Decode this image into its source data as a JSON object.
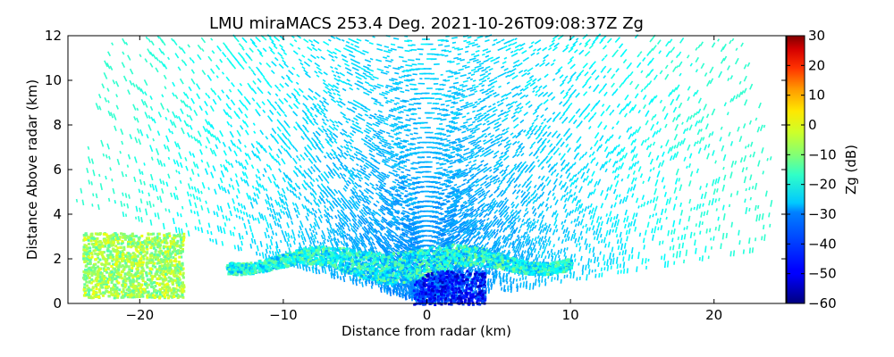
{
  "chart_data": {
    "type": "heatmap",
    "title": "LMU miraMACS 253.4 Deg. 2021-10-26T09:08:37Z  Zg",
    "xlabel": "Distance from radar (km)",
    "ylabel": "Distance Above radar  (km)",
    "xlim": [
      -25,
      25
    ],
    "ylim": [
      0,
      12
    ],
    "xticks": [
      "−20",
      "−10",
      "0",
      "10",
      "20"
    ],
    "xtick_values": [
      -20,
      -10,
      0,
      10,
      20
    ],
    "yticks": [
      "0",
      "2",
      "4",
      "6",
      "8",
      "10",
      "12"
    ],
    "ytick_values": [
      0,
      2,
      4,
      6,
      8,
      10,
      12
    ],
    "colorbar": {
      "label": "Zg (dB)",
      "range": [
        -60,
        30
      ],
      "ticks": [
        "30",
        "20",
        "10",
        "0",
        "−10",
        "−20",
        "−30",
        "−40",
        "−50",
        "−60"
      ],
      "tick_values": [
        30,
        20,
        10,
        0,
        -10,
        -20,
        -30,
        -40,
        -50,
        -60
      ],
      "colormap": "jet"
    },
    "scan": {
      "radar_position_km": [
        0,
        0
      ],
      "elevation_range_deg": [
        6,
        170
      ],
      "max_range_km": 25
    },
    "features": [
      {
        "name": "speckle_noise",
        "x_range_km": [
          -24,
          24
        ],
        "y_range_km": [
          0,
          12
        ],
        "zg_dB_range": [
          -40,
          -22
        ]
      },
      {
        "name": "cloud_layer",
        "x_range_km": [
          -14,
          10
        ],
        "y_range_km": [
          1.2,
          2.6
        ],
        "zg_dB_range": [
          -35,
          -15
        ]
      },
      {
        "name": "strong_echo_left",
        "x_range_km": [
          -24,
          -17
        ],
        "y_range_km": [
          0.3,
          3.2
        ],
        "zg_dB_range": [
          -20,
          -4
        ]
      },
      {
        "name": "near_radar_weak_echo",
        "x_range_km": [
          -1,
          4
        ],
        "y_range_km": [
          0,
          1.5
        ],
        "zg_dB_range": [
          -55,
          -40
        ]
      }
    ]
  }
}
